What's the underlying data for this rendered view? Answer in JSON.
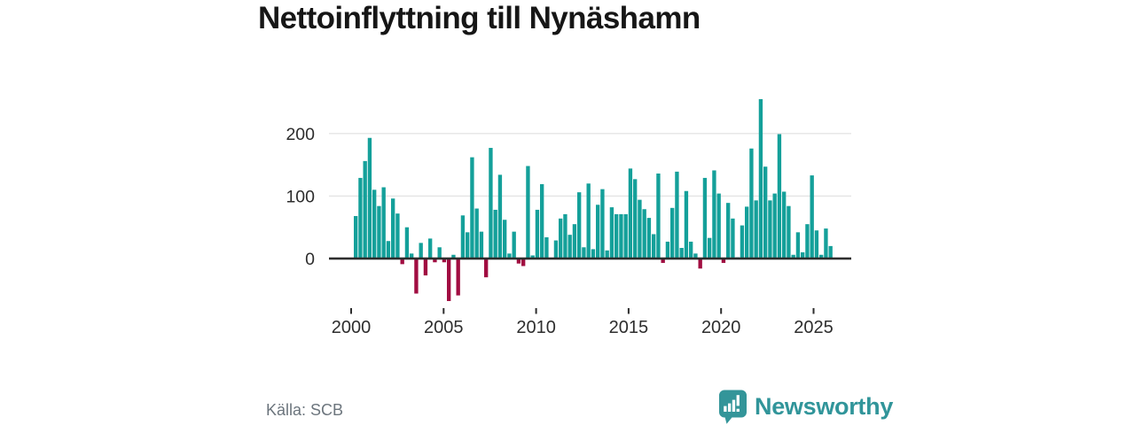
{
  "title": "Nettoinflyttning till Nynäshamn",
  "source": {
    "label": "Källa: SCB"
  },
  "brand": {
    "name": "Newsworthy",
    "color": "#339599",
    "icon": "speech-bubble-bar-chart"
  },
  "chart_data": {
    "type": "bar",
    "title": "Nettoinflyttning till Nynäshamn",
    "frequency": "quarterly",
    "start_period": "2000Q1",
    "end_period": "2025Q3",
    "xlabel": "",
    "ylabel": "",
    "x_tick_years": [
      2000,
      2005,
      2010,
      2015,
      2020,
      2025
    ],
    "x_tick_labels": [
      "2000",
      "2005",
      "2010",
      "2015",
      "2020",
      "2025"
    ],
    "y_ticks": [
      0,
      100,
      200
    ],
    "y_tick_labels": [
      "0",
      "100",
      "200"
    ],
    "ylim": [
      -80,
      270
    ],
    "grid": "horizontal",
    "legend": "none",
    "positive_color": "#14a09a",
    "negative_color": "#a10d41",
    "axis_color": "#2d2d2d",
    "grid_color": "#e4e4e4",
    "label_color": "#2d2d2d",
    "series": [
      {
        "name": "Nettoinflyttning",
        "values": [
          68,
          129,
          156,
          193,
          110,
          84,
          114,
          28,
          96,
          72,
          -9,
          50,
          8,
          -56,
          25,
          -27,
          32,
          -6,
          18,
          -6,
          -68,
          6,
          -59,
          69,
          42,
          162,
          80,
          43,
          -30,
          177,
          78,
          134,
          62,
          8,
          43,
          -8,
          -12,
          148,
          5,
          78,
          119,
          34,
          1,
          29,
          64,
          71,
          38,
          55,
          106,
          18,
          120,
          15,
          86,
          111,
          13,
          82,
          71,
          71,
          71,
          144,
          127,
          94,
          79,
          65,
          39,
          136,
          -7,
          27,
          81,
          139,
          17,
          108,
          27,
          8,
          -16,
          129,
          33,
          141,
          104,
          -7,
          89,
          64,
          2,
          53,
          83,
          176,
          93,
          255,
          147,
          93,
          104,
          199,
          107,
          84,
          6,
          42,
          10,
          55,
          133,
          45,
          6,
          48,
          20
        ]
      }
    ]
  }
}
